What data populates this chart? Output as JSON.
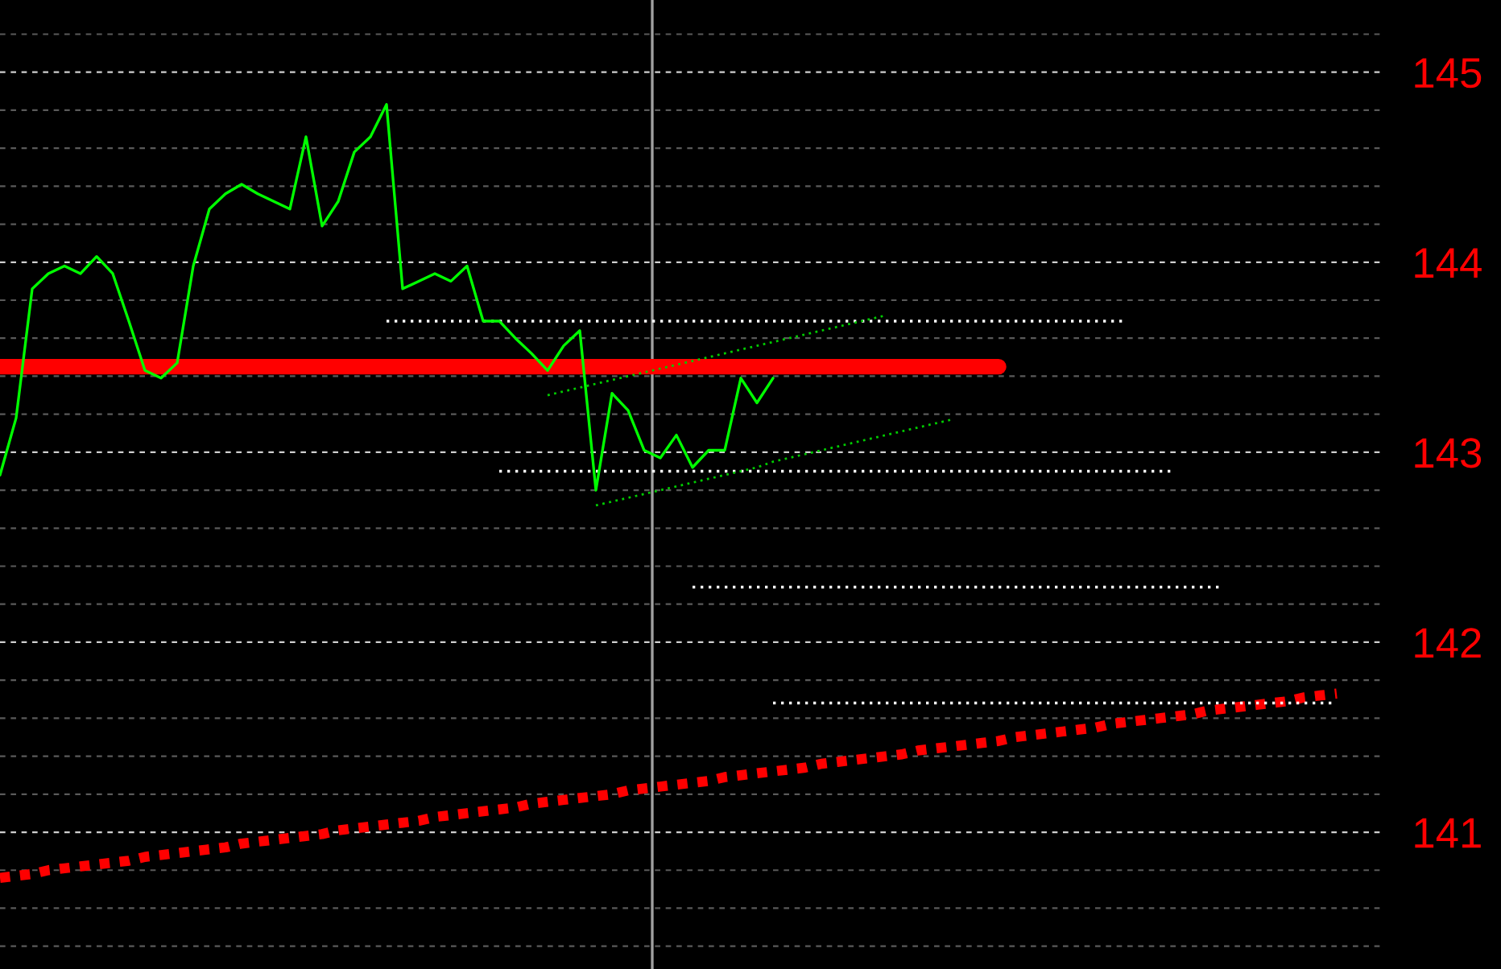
{
  "chart_data": {
    "type": "line",
    "categories": [
      null,
      null,
      null,
      null,
      null,
      null,
      null,
      null,
      null,
      null,
      null,
      null,
      null,
      null,
      null,
      null,
      null,
      null,
      null,
      null,
      null,
      null,
      null,
      null,
      null,
      null,
      null,
      null,
      null,
      null,
      null,
      null,
      null,
      null,
      null,
      null,
      null,
      null,
      null,
      null,
      null,
      null,
      null,
      null,
      null,
      null,
      null,
      null,
      null,
      null,
      null,
      null,
      null,
      null,
      null,
      null,
      null,
      null,
      null,
      null,
      null,
      null,
      null,
      null,
      null,
      null,
      null,
      null,
      null,
      null,
      null,
      null,
      null,
      null,
      null,
      null,
      null,
      null,
      null,
      null,
      null,
      null,
      null,
      null,
      null,
      null,
      null
    ],
    "ylim": [
      140.28,
      145.38
    ],
    "yticks": [
      {
        "value": 140.4,
        "label": null
      },
      {
        "value": 140.6,
        "label": null
      },
      {
        "value": 140.8,
        "label": null
      },
      141,
      {
        "value": 141.2,
        "label": null
      },
      {
        "value": 141.4,
        "label": null
      },
      {
        "value": 141.6,
        "label": null
      },
      {
        "value": 141.8,
        "label": null
      },
      142,
      {
        "value": 142.2,
        "label": null
      },
      {
        "value": 142.4,
        "label": null
      },
      {
        "value": 142.6,
        "label": null
      },
      {
        "value": 142.8,
        "label": null
      },
      143,
      {
        "value": 143.2,
        "label": null
      },
      {
        "value": 143.4,
        "label": null
      },
      {
        "value": 143.6,
        "label": null
      },
      {
        "value": 143.8,
        "label": null
      },
      144,
      {
        "value": 144.2,
        "label": null
      },
      {
        "value": 144.4,
        "label": null
      },
      {
        "value": 144.6,
        "label": null
      },
      {
        "value": 144.8,
        "label": null
      },
      145,
      {
        "value": 145.2,
        "label": null
      }
    ],
    "grid": "y",
    "series": [
      {
        "color": "#00ff00",
        "line_style": "solid",
        "values": [
          142.88,
          143.18,
          143.86,
          143.94,
          143.98,
          143.94,
          144.03,
          143.94,
          143.69,
          143.43,
          143.39,
          143.47,
          143.98,
          144.28,
          144.36,
          144.41,
          144.36,
          144.32,
          144.28,
          144.66,
          144.19,
          144.32,
          144.58,
          144.66,
          144.83,
          143.86,
          143.9,
          143.94,
          143.9,
          143.98,
          143.69,
          143.69,
          143.6,
          143.52,
          143.43,
          143.56,
          143.64,
          142.8,
          143.31,
          143.22,
          143.01,
          142.97,
          143.09,
          142.92,
          143.01,
          143.01,
          143.39,
          143.26,
          143.39,
          null,
          null,
          null,
          null,
          null,
          null,
          null,
          null,
          null,
          null,
          null,
          null,
          null,
          null,
          null,
          null,
          null,
          null,
          null,
          null,
          null,
          null,
          null,
          null,
          null,
          null,
          null,
          null,
          null,
          null,
          null,
          null,
          null,
          null,
          null,
          null,
          null,
          null
        ]
      },
      {
        "color": "#ff0000",
        "line_style": "solid",
        "values": [
          143.45,
          143.45,
          143.45,
          143.45,
          143.45,
          143.45,
          143.45,
          143.45,
          143.45,
          143.45,
          143.45,
          143.45,
          143.45,
          143.45,
          143.45,
          143.45,
          143.45,
          143.45,
          143.45,
          143.45,
          143.45,
          143.45,
          143.45,
          143.45,
          143.45,
          143.45,
          143.45,
          143.45,
          143.45,
          143.45,
          143.45,
          143.45,
          143.45,
          143.45,
          143.45,
          143.45,
          143.45,
          143.45,
          143.45,
          143.45,
          143.45,
          143.45,
          143.45,
          143.45,
          143.45,
          143.45,
          143.45,
          143.45,
          143.45,
          143.45,
          143.45,
          143.45,
          143.45,
          143.45,
          143.45,
          143.45,
          143.45,
          143.45,
          143.45,
          143.45,
          143.45,
          143.45,
          143.45,
          null,
          null,
          null,
          null,
          null,
          null,
          null,
          null,
          null,
          null,
          null,
          null,
          null,
          null,
          null,
          null,
          null,
          null,
          null,
          null,
          null,
          null,
          null,
          null
        ]
      },
      {
        "color": "#ff0000",
        "line_style": "dotted",
        "values": [
          140.76,
          140.77,
          140.78,
          140.8,
          140.81,
          140.82,
          140.83,
          140.84,
          140.85,
          140.87,
          140.88,
          140.89,
          140.9,
          140.91,
          140.92,
          140.94,
          140.95,
          140.96,
          140.97,
          140.98,
          140.99,
          141.01,
          141.02,
          141.03,
          141.04,
          141.05,
          141.06,
          141.08,
          141.09,
          141.1,
          141.11,
          141.12,
          141.13,
          141.15,
          141.16,
          141.17,
          141.18,
          141.19,
          141.2,
          141.22,
          141.23,
          141.24,
          141.25,
          141.26,
          141.27,
          141.29,
          141.3,
          141.31,
          141.32,
          141.33,
          141.34,
          141.36,
          141.37,
          141.38,
          141.39,
          141.4,
          141.41,
          141.43,
          141.44,
          141.45,
          141.46,
          141.47,
          141.48,
          141.5,
          141.51,
          141.52,
          141.53,
          141.54,
          141.55,
          141.57,
          141.58,
          141.59,
          141.6,
          141.61,
          141.62,
          141.64,
          141.65,
          141.66,
          141.67,
          141.68,
          141.69,
          141.71,
          141.72,
          141.73,
          null,
          null,
          null
        ]
      },
      {
        "color": "#ffffff",
        "line_style": "dotted",
        "values": [
          null,
          null,
          null,
          null,
          null,
          null,
          null,
          null,
          null,
          null,
          null,
          null,
          null,
          null,
          null,
          null,
          null,
          null,
          null,
          null,
          null,
          null,
          null,
          null,
          143.69,
          143.69,
          143.69,
          143.69,
          143.69,
          143.69,
          143.69,
          143.69,
          143.69,
          143.69,
          143.69,
          143.69,
          143.69,
          143.69,
          143.69,
          143.69,
          143.69,
          143.69,
          143.69,
          143.69,
          143.69,
          143.69,
          143.69,
          143.69,
          143.69,
          143.69,
          143.69,
          143.69,
          143.69,
          143.69,
          143.69,
          143.69,
          143.69,
          143.69,
          143.69,
          143.69,
          143.69,
          143.69,
          143.69,
          143.69,
          143.69,
          143.69,
          143.69,
          143.69,
          143.69,
          143.69,
          143.69,
          null,
          null,
          null,
          null,
          null,
          null,
          null,
          null,
          null,
          null,
          null,
          null,
          null,
          null,
          null,
          null
        ]
      },
      {
        "color": "#ffffff",
        "line_style": "dotted",
        "values": [
          null,
          null,
          null,
          null,
          null,
          null,
          null,
          null,
          null,
          null,
          null,
          null,
          null,
          null,
          null,
          null,
          null,
          null,
          null,
          null,
          null,
          null,
          null,
          null,
          null,
          null,
          null,
          null,
          null,
          null,
          null,
          142.9,
          142.9,
          142.9,
          142.9,
          142.9,
          142.9,
          142.9,
          142.9,
          142.9,
          142.9,
          142.9,
          142.9,
          142.9,
          142.9,
          142.9,
          142.9,
          142.9,
          142.9,
          142.9,
          142.9,
          142.9,
          142.9,
          142.9,
          142.9,
          142.9,
          142.9,
          142.9,
          142.9,
          142.9,
          142.9,
          142.9,
          142.9,
          142.9,
          142.9,
          142.9,
          142.9,
          142.9,
          142.9,
          142.9,
          142.9,
          142.9,
          142.9,
          142.9,
          null,
          null,
          null,
          null,
          null,
          null,
          null,
          null,
          null,
          null,
          null,
          null,
          null
        ]
      },
      {
        "color": "#ffffff",
        "line_style": "dotted",
        "values": [
          null,
          null,
          null,
          null,
          null,
          null,
          null,
          null,
          null,
          null,
          null,
          null,
          null,
          null,
          null,
          null,
          null,
          null,
          null,
          null,
          null,
          null,
          null,
          null,
          null,
          null,
          null,
          null,
          null,
          null,
          null,
          null,
          null,
          null,
          null,
          null,
          null,
          null,
          null,
          null,
          null,
          null,
          null,
          142.29,
          142.29,
          142.29,
          142.29,
          142.29,
          142.29,
          142.29,
          142.29,
          142.29,
          142.29,
          142.29,
          142.29,
          142.29,
          142.29,
          142.29,
          142.29,
          142.29,
          142.29,
          142.29,
          142.29,
          142.29,
          142.29,
          142.29,
          142.29,
          142.29,
          142.29,
          142.29,
          142.29,
          142.29,
          142.29,
          142.29,
          142.29,
          142.29,
          142.29,
          null,
          null,
          null,
          null,
          null,
          null,
          null,
          null,
          null,
          null
        ]
      },
      {
        "color": "#ffffff",
        "line_style": "dotted",
        "values": [
          null,
          null,
          null,
          null,
          null,
          null,
          null,
          null,
          null,
          null,
          null,
          null,
          null,
          null,
          null,
          null,
          null,
          null,
          null,
          null,
          null,
          null,
          null,
          null,
          null,
          null,
          null,
          null,
          null,
          null,
          null,
          null,
          null,
          null,
          null,
          null,
          null,
          null,
          null,
          null,
          null,
          null,
          null,
          null,
          null,
          null,
          null,
          null,
          141.68,
          141.68,
          141.68,
          141.68,
          141.68,
          141.68,
          141.68,
          141.68,
          141.68,
          141.68,
          141.68,
          141.68,
          141.68,
          141.68,
          141.68,
          141.68,
          141.68,
          141.68,
          141.68,
          141.68,
          141.68,
          141.68,
          141.68,
          141.68,
          141.68,
          141.68,
          141.68,
          141.68,
          141.68,
          141.68,
          141.68,
          141.68,
          141.68,
          141.68,
          141.68,
          141.68,
          null,
          null,
          null
        ]
      },
      {
        "color": "#00cc00",
        "line_style": "dotted",
        "values": [
          null,
          null,
          null,
          null,
          null,
          null,
          null,
          null,
          null,
          null,
          null,
          null,
          null,
          null,
          null,
          null,
          null,
          null,
          null,
          null,
          null,
          null,
          null,
          null,
          null,
          null,
          null,
          null,
          null,
          null,
          null,
          null,
          null,
          null,
          143.3,
          143.32,
          143.34,
          143.36,
          143.38,
          143.4,
          143.42,
          143.44,
          143.46,
          143.48,
          143.5,
          143.52,
          143.54,
          143.56,
          143.58,
          143.6,
          143.62,
          143.64,
          143.66,
          143.68,
          143.7,
          143.72,
          null,
          null,
          null,
          null,
          null,
          null,
          null,
          null,
          null,
          null,
          null,
          null,
          null,
          null,
          null,
          null,
          null,
          null,
          null,
          null,
          null,
          null,
          null,
          null,
          null,
          null,
          null,
          null,
          null,
          null,
          null
        ]
      },
      {
        "color": "#00cc00",
        "line_style": "dotted",
        "values": [
          null,
          null,
          null,
          null,
          null,
          null,
          null,
          null,
          null,
          null,
          null,
          null,
          null,
          null,
          null,
          null,
          null,
          null,
          null,
          null,
          null,
          null,
          null,
          null,
          null,
          null,
          null,
          null,
          null,
          null,
          null,
          null,
          null,
          null,
          null,
          null,
          null,
          142.72,
          142.74,
          142.76,
          142.78,
          142.8,
          142.82,
          142.84,
          142.86,
          142.88,
          142.9,
          142.92,
          142.95,
          142.97,
          142.99,
          143.01,
          143.03,
          143.05,
          143.07,
          143.09,
          143.11,
          143.13,
          143.15,
          143.17,
          null,
          null,
          null,
          null,
          null,
          null,
          null,
          null,
          null,
          null,
          null,
          null,
          null,
          null,
          null,
          null,
          null,
          null,
          null,
          null,
          null,
          null,
          null,
          null,
          null,
          null,
          null
        ]
      }
    ]
  }
}
